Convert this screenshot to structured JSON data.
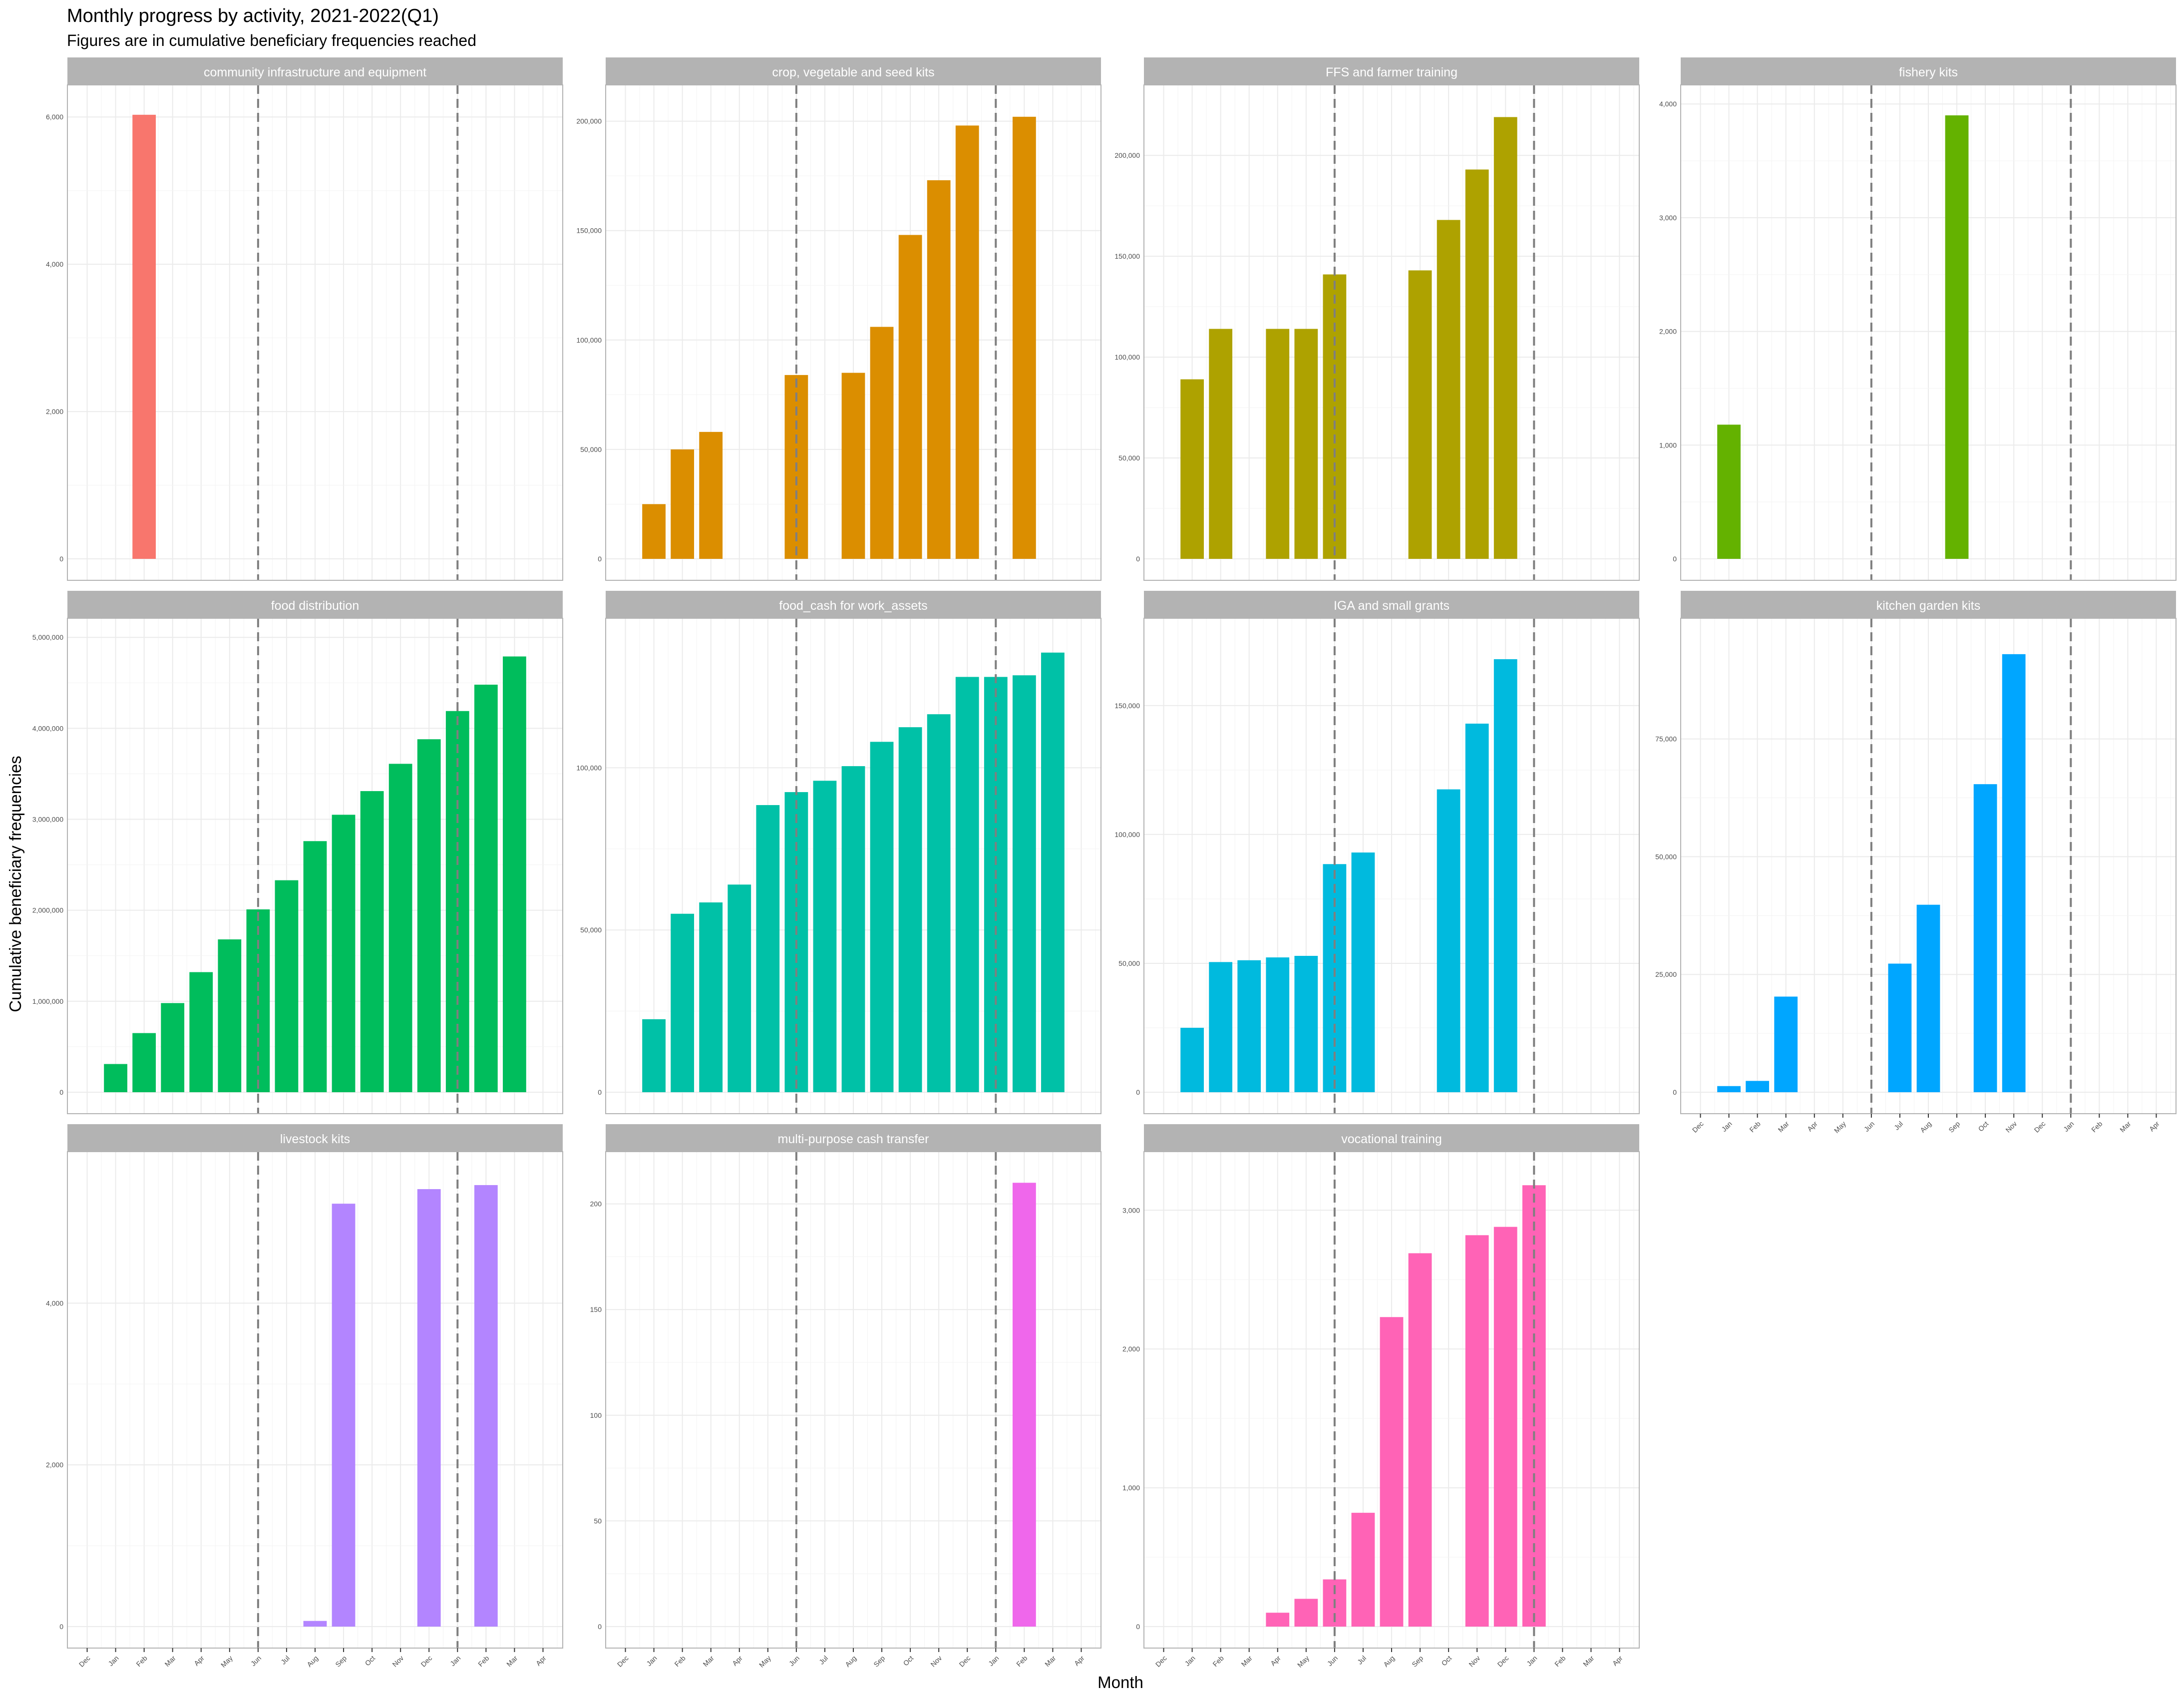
{
  "title": "Monthly progress by activity, 2021-2022(Q1)",
  "subtitle": "Figures are in cumulative beneficiary frequencies reached",
  "xlabel": "Month",
  "ylabel": "Cumulative beneficiary frequencies",
  "month_ticks": [
    "Dec",
    "Jan",
    "Feb",
    "Mar",
    "Apr",
    "May",
    "Jun",
    "Jul",
    "Aug",
    "Sep",
    "Oct",
    "Nov",
    "Dec",
    "Jan",
    "Feb",
    "Mar",
    "Apr"
  ],
  "reference_lines": [
    "Jun",
    "Jan"
  ],
  "chart_data": {
    "type": "bar",
    "facets_layout": "4 columns, 3 rows, shared x axis",
    "x": [
      "Dec",
      "Jan",
      "Feb",
      "Mar",
      "Apr",
      "May",
      "Jun",
      "Jul",
      "Aug",
      "Sep",
      "Oct",
      "Nov",
      "Dec",
      "Jan",
      "Feb",
      "Mar",
      "Apr"
    ],
    "reference_lines_at": [
      "Jun",
      "Jan"
    ],
    "reference_line_style": "dashed grey",
    "grid": true,
    "legend": "none",
    "facets": [
      {
        "name": "community infrastructure and equipment",
        "color": "#F8766D",
        "yticks": [
          0,
          2000,
          4000,
          6000
        ],
        "ylim": [
          0,
          6300
        ],
        "values": [
          null,
          null,
          6030,
          null,
          null,
          null,
          null,
          null,
          null,
          null,
          null,
          null,
          null,
          null,
          null,
          null,
          null
        ]
      },
      {
        "name": "crop, vegetable and seed kits",
        "color": "#DB8E00",
        "yticks": [
          0,
          50000,
          100000,
          150000,
          200000
        ],
        "ylim": [
          0,
          212000
        ],
        "values": [
          null,
          25000,
          50000,
          58000,
          null,
          null,
          84000,
          null,
          85000,
          106000,
          148000,
          173000,
          198000,
          null,
          202000,
          null,
          null
        ]
      },
      {
        "name": "FFS and farmer training",
        "color": "#AEA200",
        "yticks": [
          0,
          50000,
          100000,
          150000,
          200000
        ],
        "ylim": [
          0,
          230000
        ],
        "values": [
          null,
          89000,
          114000,
          null,
          114000,
          114000,
          141000,
          null,
          null,
          143000,
          168000,
          193000,
          219000,
          null,
          null,
          null,
          null
        ]
      },
      {
        "name": "fishery kits",
        "color": "#64B200",
        "yticks": [
          0,
          1000,
          2000,
          3000,
          4000
        ],
        "ylim": [
          0,
          4080
        ],
        "values": [
          null,
          1180,
          null,
          null,
          null,
          null,
          null,
          null,
          null,
          3900,
          null,
          null,
          null,
          null,
          null,
          null,
          null
        ]
      },
      {
        "name": "food distribution",
        "color": "#00BD5C",
        "yticks": [
          0,
          1000000,
          2000000,
          3000000,
          4000000,
          5000000
        ],
        "ylim": [
          0,
          5100000
        ],
        "values": [
          null,
          310000,
          650000,
          980000,
          1320000,
          1680000,
          2010000,
          2330000,
          2760000,
          3050000,
          3310000,
          3610000,
          3880000,
          4190000,
          4480000,
          4790000,
          null
        ]
      },
      {
        "name": "food_cash for work_assets",
        "color": "#00C1A7",
        "yticks": [
          0,
          50000,
          100000
        ],
        "ylim": [
          0,
          143000
        ],
        "values": [
          null,
          22500,
          55000,
          58500,
          64000,
          88500,
          92500,
          96000,
          100500,
          108000,
          112500,
          116500,
          128000,
          128000,
          128500,
          135500,
          null
        ]
      },
      {
        "name": "IGA and small grants",
        "color": "#00BADE",
        "yticks": [
          0,
          50000,
          100000,
          150000
        ],
        "ylim": [
          0,
          180000
        ],
        "values": [
          null,
          25000,
          50500,
          51200,
          52300,
          52900,
          88500,
          93000,
          null,
          null,
          117500,
          143000,
          168000,
          null,
          null,
          null,
          null
        ]
      },
      {
        "name": "kitchen garden kits",
        "color": "#00A6FF",
        "yticks": [
          0,
          25000,
          50000,
          75000
        ],
        "ylim": [
          0,
          98500
        ],
        "values": [
          null,
          1300,
          2400,
          20300,
          null,
          null,
          null,
          27300,
          39800,
          null,
          65400,
          93000,
          null,
          null,
          null,
          null,
          null
        ]
      },
      {
        "name": "livestock kits",
        "color": "#B385FF",
        "yticks": [
          0,
          2000,
          4000
        ],
        "ylim": [
          0,
          5750
        ],
        "values": [
          null,
          null,
          null,
          null,
          null,
          null,
          null,
          null,
          70,
          5230,
          null,
          null,
          5410,
          null,
          5460,
          null,
          null
        ]
      },
      {
        "name": "multi-purpose cash transfer",
        "color": "#EF67EB",
        "yticks": [
          0,
          50,
          100,
          150,
          200
        ],
        "ylim": [
          0,
          220
        ],
        "values": [
          null,
          null,
          null,
          null,
          null,
          null,
          null,
          null,
          null,
          null,
          null,
          null,
          null,
          null,
          210,
          null,
          null
        ]
      },
      {
        "name": "vocational training",
        "color": "#FF63B6",
        "yticks": [
          0,
          1000,
          2000,
          3000
        ],
        "ylim": [
          0,
          3350
        ],
        "values": [
          null,
          null,
          null,
          null,
          100,
          200,
          340,
          820,
          2230,
          2690,
          null,
          2820,
          2880,
          3180,
          null,
          null,
          null
        ]
      }
    ]
  }
}
